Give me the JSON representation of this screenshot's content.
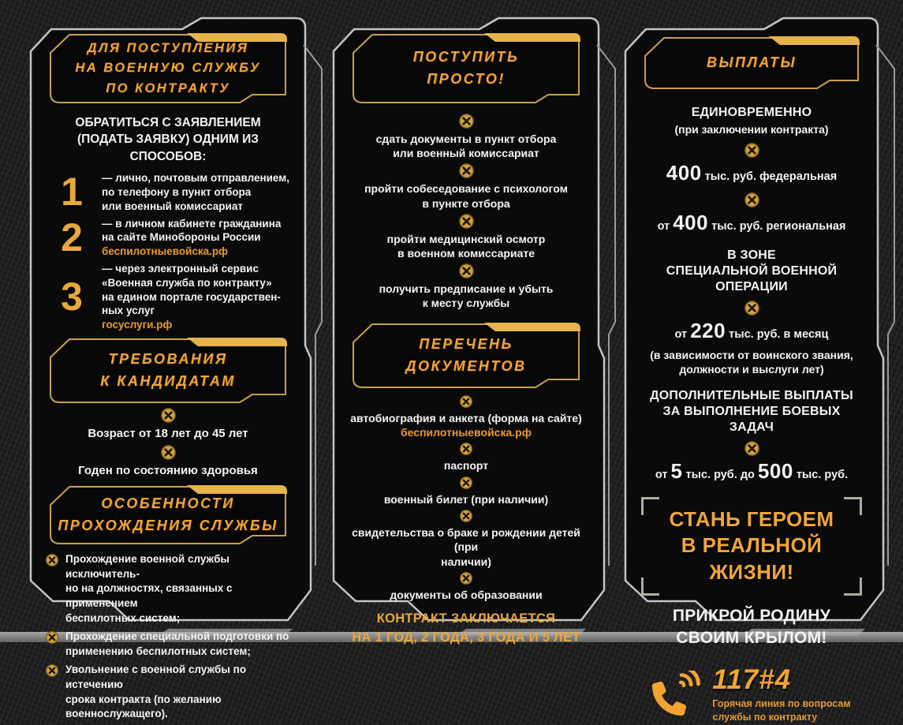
{
  "colors": {
    "gold_accent": "#f0a63c",
    "frame_gold": "#c9a04a",
    "panel_outline": "#c4c4c4",
    "panel_background": "#0a0a0b",
    "page_background": "#1a1a1a",
    "text_white": "#f4f4f4"
  },
  "left": {
    "title": "ДЛЯ ПОСТУПЛЕНИЯ\nНА ВОЕННУЮ СЛУЖБУ\nПО КОНТРАКТУ",
    "intro": "ОБРАТИТЬСЯ С ЗАЯВЛЕНИЕМ\n(ПОДАТЬ ЗАЯВКУ) ОДНИМ ИЗ СПОСОБОВ:",
    "steps": [
      {
        "num": "1",
        "text": "— лично, почтовым отправлением,\nпо телефону в пункт отбора\nили военный комиссариат",
        "link": ""
      },
      {
        "num": "2",
        "text": "— в личном кабинете гражданина\nна сайте Минобороны России",
        "link": "беспилотныевойска.рф"
      },
      {
        "num": "3",
        "text": "— через электронный сервис\n«Военная служба по контракту»\nна едином портале государствен-\nных услуг",
        "link": "госуслуги.рф"
      }
    ],
    "requirements_title": "ТРЕБОВАНИЯ\nК КАНДИДАТАМ",
    "requirements": [
      "Возраст от 18 лет до 45 лет",
      "Годен по состоянию здоровья"
    ],
    "features_title": "ОСОБЕННОСТИ\nПРОХОЖДЕНИЯ СЛУЖБЫ",
    "features": [
      "Прохождение военной службы исключитель-\nно на должностях, связанных с применением\nбеспилотных систем;",
      "Прохождение специальной подготовки по\nприменению беспилотных систем;",
      "Увольнение с военной службы по истечению\nсрока контракта (по желанию военнослужащего)."
    ]
  },
  "middle": {
    "title": "ПОСТУПИТЬ\nПРОСТО!",
    "steps": [
      "сдать документы в пункт отбора\nили военный комиссариат",
      "пройти собеседование с психологом\nв пункте отбора",
      "пройти медицинский осмотр\nв военном комиссариате",
      "получить предписание и убыть\nк месту службы"
    ],
    "documents_title": "ПЕРЕЧЕНЬ\nДОКУМЕНТОВ",
    "documents": [
      {
        "text": "автобиография и анкета (форма на сайте)",
        "link": "беспилотныевойска.рф"
      },
      {
        "text": "паспорт",
        "link": ""
      },
      {
        "text": "военный билет (при наличии)",
        "link": ""
      },
      {
        "text": "свидетельства о браке и рождении детей (при\nналичии)",
        "link": ""
      },
      {
        "text": "документы об образовании",
        "link": ""
      }
    ],
    "contract_note": "КОНТРАКТ ЗАКЛЮЧАЕТСЯ\nНА 1 ГОД, 2 ГОДА, 3 ГОДА И 5 ЛЕТ"
  },
  "right": {
    "title": "ВЫПЛАТЫ",
    "lump_title": "ЕДИНОВРЕМЕННО",
    "lump_sub": "(при заключении контракта)",
    "federal": {
      "pre": "",
      "big": "400",
      "post": " тыс. руб. федеральная"
    },
    "regional": {
      "pre": "от ",
      "big": "400",
      "post": " тыс. руб. региональная"
    },
    "svo_title": "В ЗОНЕ\nСПЕЦИАЛЬНОЙ ВОЕННОЙ ОПЕРАЦИИ",
    "monthly": {
      "pre": "от ",
      "big": "220",
      "post": " тыс. руб. в месяц"
    },
    "monthly_note": "(в зависимости от  воинского звания,\nдолжности и выслуги лет)",
    "bonus_title": "ДОПОЛНИТЕЛЬНЫЕ ВЫПЛАТЫ\nЗА ВЫПОЛНЕНИЕ БОЕВЫХ ЗАДАЧ",
    "bonus": {
      "pre": "от ",
      "big1": "5",
      "mid": " тыс. руб. до ",
      "big2": "500",
      "post": " тыс. руб."
    },
    "hero": "СТАНЬ ГЕРОЕМ\nВ РЕАЛЬНОЙ ЖИЗНИ!",
    "slogan": "ПРИКРОЙ РОДИНУ\nСВОИМ КРЫЛОМ!",
    "phone": "117#4",
    "hotline": "Горячая линия по вопросам\nслужбы по контракту"
  }
}
